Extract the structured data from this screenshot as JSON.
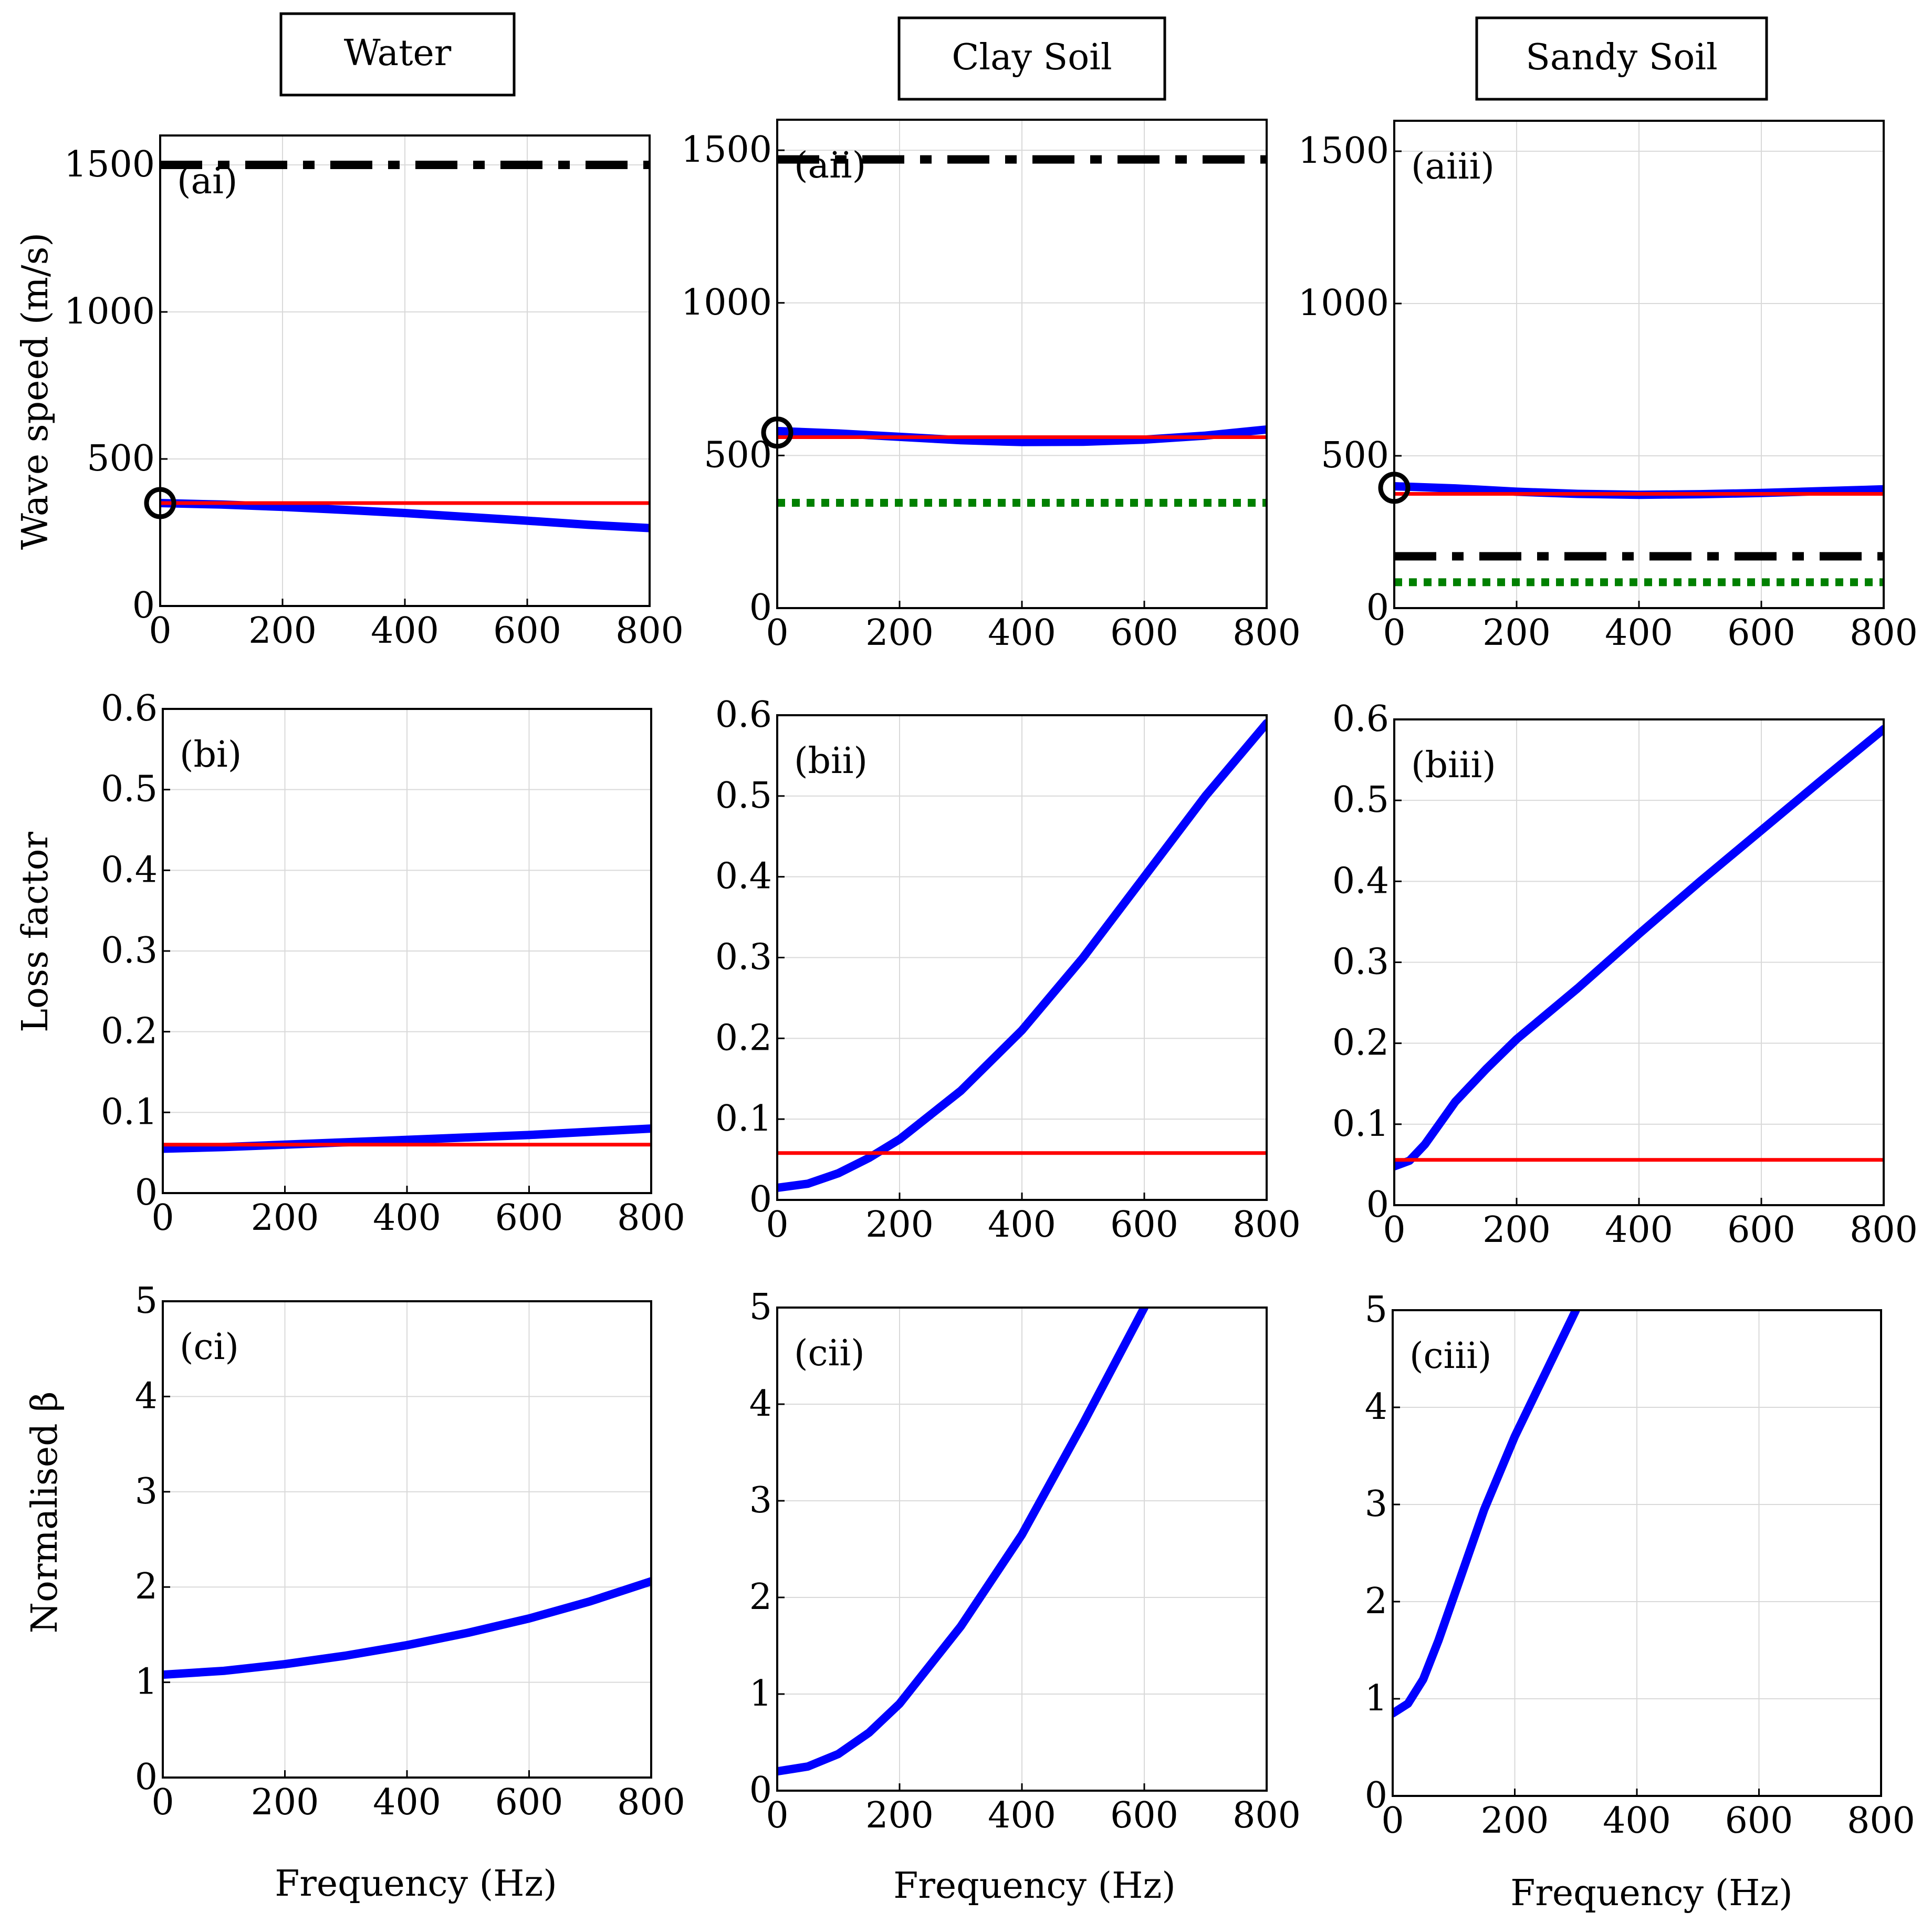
{
  "colors": {
    "wave_speed_line": "#0000ff",
    "reference_line": "#ff0000",
    "dash_dot_line": "#000000",
    "dotted_line": "#008000",
    "grid": "#d9d9d9"
  },
  "columns": [
    {
      "title": "Water"
    },
    {
      "title": "Clay Soil"
    },
    {
      "title": "Sandy Soil"
    }
  ],
  "row_labels": {
    "row_a": "Wave speed (m/s)",
    "row_b": "Loss factor",
    "row_c": "Normalised β"
  },
  "xlabel": "Frequency (Hz)",
  "chart_data": [
    {
      "id": "ai",
      "label": "(ai)",
      "type": "line",
      "xlim": [
        0,
        800
      ],
      "ylim": [
        0,
        1600
      ],
      "xticks": [
        0,
        200,
        400,
        600,
        800
      ],
      "xtick_labels": [
        "0",
        "200",
        "400",
        "600",
        "800"
      ],
      "yticks": [
        0,
        500,
        1000,
        1500
      ],
      "ytick_labels": [
        "0",
        "500",
        "1000",
        "1500"
      ],
      "series": [
        {
          "name": "dash-dot",
          "style": "dashdot",
          "x": [
            0,
            800
          ],
          "y": [
            1500,
            1500
          ]
        },
        {
          "name": "blue",
          "style": "thick",
          "x": [
            0,
            100,
            200,
            300,
            400,
            500,
            600,
            700,
            800
          ],
          "y": [
            350,
            345,
            337,
            327,
            316,
            303,
            290,
            276,
            265
          ]
        },
        {
          "name": "red",
          "style": "thin",
          "x": [
            0,
            800
          ],
          "y": [
            350,
            350
          ]
        }
      ],
      "markers": [
        {
          "x": 0,
          "y": 350
        }
      ]
    },
    {
      "id": "aii",
      "label": "(aii)",
      "type": "line",
      "xlim": [
        0,
        800
      ],
      "ylim": [
        0,
        1600
      ],
      "xticks": [
        0,
        200,
        400,
        600,
        800
      ],
      "xtick_labels": [
        "0",
        "200",
        "400",
        "600",
        "800"
      ],
      "yticks": [
        0,
        500,
        1000,
        1500
      ],
      "ytick_labels": [
        "0",
        "500",
        "1000",
        "1500"
      ],
      "series": [
        {
          "name": "dash-dot",
          "style": "dashdot",
          "x": [
            0,
            800
          ],
          "y": [
            1470,
            1470
          ]
        },
        {
          "name": "blue",
          "style": "thick",
          "x": [
            0,
            100,
            200,
            300,
            400,
            500,
            600,
            700,
            800
          ],
          "y": [
            580,
            572,
            561,
            550,
            544,
            545,
            552,
            565,
            585
          ]
        },
        {
          "name": "red",
          "style": "thin",
          "x": [
            0,
            800
          ],
          "y": [
            560,
            560
          ]
        },
        {
          "name": "green-dotted",
          "style": "dotted",
          "x": [
            0,
            800
          ],
          "y": [
            345,
            345
          ]
        }
      ],
      "markers": [
        {
          "x": 0,
          "y": 575
        }
      ]
    },
    {
      "id": "aiii",
      "label": "(aiii)",
      "type": "line",
      "xlim": [
        0,
        800
      ],
      "ylim": [
        0,
        1600
      ],
      "xticks": [
        0,
        200,
        400,
        600,
        800
      ],
      "xtick_labels": [
        "0",
        "200",
        "400",
        "600",
        "800"
      ],
      "yticks": [
        0,
        500,
        1000,
        1500
      ],
      "ytick_labels": [
        "0",
        "500",
        "1000",
        "1500"
      ],
      "series": [
        {
          "name": "blue",
          "style": "thick",
          "x": [
            0,
            100,
            200,
            300,
            400,
            500,
            600,
            700,
            800
          ],
          "y": [
            400,
            393,
            382,
            375,
            372,
            374,
            378,
            384,
            390
          ]
        },
        {
          "name": "red",
          "style": "thin",
          "x": [
            0,
            800
          ],
          "y": [
            375,
            375
          ]
        },
        {
          "name": "dash-dot",
          "style": "dashdot",
          "x": [
            0,
            800
          ],
          "y": [
            170,
            170
          ]
        },
        {
          "name": "green-dotted",
          "style": "dotted",
          "x": [
            0,
            800
          ],
          "y": [
            85,
            85
          ]
        }
      ],
      "markers": [
        {
          "x": 0,
          "y": 395
        }
      ]
    },
    {
      "id": "bi",
      "label": "(bi)",
      "type": "line",
      "xlim": [
        0,
        800
      ],
      "ylim": [
        0,
        0.6
      ],
      "xticks": [
        0,
        200,
        400,
        600,
        800
      ],
      "xtick_labels": [
        "0",
        "200",
        "400",
        "600",
        "800"
      ],
      "yticks": [
        0,
        0.1,
        0.2,
        0.3,
        0.4,
        0.5,
        0.6
      ],
      "ytick_labels": [
        "0",
        "0.1",
        "0.2",
        "0.3",
        "0.4",
        "0.5",
        "0.6"
      ],
      "series": [
        {
          "name": "blue",
          "style": "thick",
          "x": [
            0,
            100,
            200,
            300,
            400,
            500,
            600,
            700,
            800
          ],
          "y": [
            0.055,
            0.057,
            0.06,
            0.063,
            0.066,
            0.069,
            0.072,
            0.076,
            0.08
          ]
        },
        {
          "name": "red",
          "style": "thin",
          "x": [
            0,
            800
          ],
          "y": [
            0.06,
            0.06
          ]
        }
      ]
    },
    {
      "id": "bii",
      "label": "(bii)",
      "type": "line",
      "xlim": [
        0,
        800
      ],
      "ylim": [
        0,
        0.6
      ],
      "xticks": [
        0,
        200,
        400,
        600,
        800
      ],
      "xtick_labels": [
        "0",
        "200",
        "400",
        "600",
        "800"
      ],
      "yticks": [
        0,
        0.1,
        0.2,
        0.3,
        0.4,
        0.5,
        0.6
      ],
      "ytick_labels": [
        "0",
        "0.1",
        "0.2",
        "0.3",
        "0.4",
        "0.5",
        "0.6"
      ],
      "series": [
        {
          "name": "blue",
          "style": "thick",
          "x": [
            0,
            50,
            100,
            150,
            200,
            300,
            400,
            500,
            600,
            700,
            800
          ],
          "y": [
            0.015,
            0.02,
            0.033,
            0.052,
            0.075,
            0.135,
            0.21,
            0.3,
            0.4,
            0.5,
            0.59
          ]
        },
        {
          "name": "red",
          "style": "thin",
          "x": [
            0,
            800
          ],
          "y": [
            0.058,
            0.058
          ]
        }
      ]
    },
    {
      "id": "biii",
      "label": "(biii)",
      "type": "line",
      "xlim": [
        0,
        800
      ],
      "ylim": [
        0,
        0.6
      ],
      "xticks": [
        0,
        200,
        400,
        600,
        800
      ],
      "xtick_labels": [
        "0",
        "200",
        "400",
        "600",
        "800"
      ],
      "yticks": [
        0,
        0.1,
        0.2,
        0.3,
        0.4,
        0.5,
        0.6
      ],
      "ytick_labels": [
        "0",
        "0.1",
        "0.2",
        "0.3",
        "0.4",
        "0.5",
        "0.6"
      ],
      "series": [
        {
          "name": "blue",
          "style": "thick",
          "x": [
            0,
            25,
            50,
            100,
            150,
            200,
            300,
            400,
            500,
            600,
            700,
            800
          ],
          "y": [
            0.048,
            0.055,
            0.075,
            0.128,
            0.168,
            0.205,
            0.268,
            0.335,
            0.4,
            0.463,
            0.526,
            0.588
          ]
        },
        {
          "name": "red",
          "style": "thin",
          "x": [
            0,
            800
          ],
          "y": [
            0.056,
            0.056
          ]
        }
      ]
    },
    {
      "id": "ci",
      "label": "(ci)",
      "type": "line",
      "xlim": [
        0,
        800
      ],
      "ylim": [
        0,
        5
      ],
      "xticks": [
        0,
        200,
        400,
        600,
        800
      ],
      "xtick_labels": [
        "0",
        "200",
        "400",
        "600",
        "800"
      ],
      "yticks": [
        0,
        1,
        2,
        3,
        4,
        5
      ],
      "ytick_labels": [
        "0",
        "1",
        "2",
        "3",
        "4",
        "5"
      ],
      "series": [
        {
          "name": "blue",
          "style": "thick",
          "x": [
            0,
            100,
            200,
            300,
            400,
            500,
            600,
            700,
            800
          ],
          "y": [
            1.08,
            1.12,
            1.19,
            1.28,
            1.39,
            1.52,
            1.67,
            1.85,
            2.06
          ]
        }
      ]
    },
    {
      "id": "cii",
      "label": "(cii)",
      "type": "line",
      "xlim": [
        0,
        800
      ],
      "ylim": [
        0,
        5
      ],
      "xticks": [
        0,
        200,
        400,
        600,
        800
      ],
      "xtick_labels": [
        "0",
        "200",
        "400",
        "600",
        "800"
      ],
      "yticks": [
        0,
        1,
        2,
        3,
        4,
        5
      ],
      "ytick_labels": [
        "0",
        "1",
        "2",
        "3",
        "4",
        "5"
      ],
      "series": [
        {
          "name": "blue",
          "style": "thick",
          "x": [
            0,
            50,
            100,
            150,
            200,
            300,
            400,
            500,
            600
          ],
          "y": [
            0.2,
            0.25,
            0.38,
            0.6,
            0.9,
            1.7,
            2.65,
            3.8,
            5.0
          ]
        }
      ]
    },
    {
      "id": "ciii",
      "label": "(ciii)",
      "type": "line",
      "xlim": [
        0,
        800
      ],
      "ylim": [
        0,
        5
      ],
      "xticks": [
        0,
        200,
        400,
        600,
        800
      ],
      "xtick_labels": [
        "0",
        "200",
        "400",
        "600",
        "800"
      ],
      "yticks": [
        0,
        1,
        2,
        3,
        4,
        5
      ],
      "ytick_labels": [
        "0",
        "1",
        "2",
        "3",
        "4",
        "5"
      ],
      "series": [
        {
          "name": "blue",
          "style": "thick",
          "x": [
            0,
            25,
            50,
            75,
            100,
            150,
            200,
            250,
            300
          ],
          "y": [
            0.85,
            0.95,
            1.2,
            1.6,
            2.05,
            2.95,
            3.7,
            4.35,
            5.0
          ]
        }
      ]
    }
  ]
}
